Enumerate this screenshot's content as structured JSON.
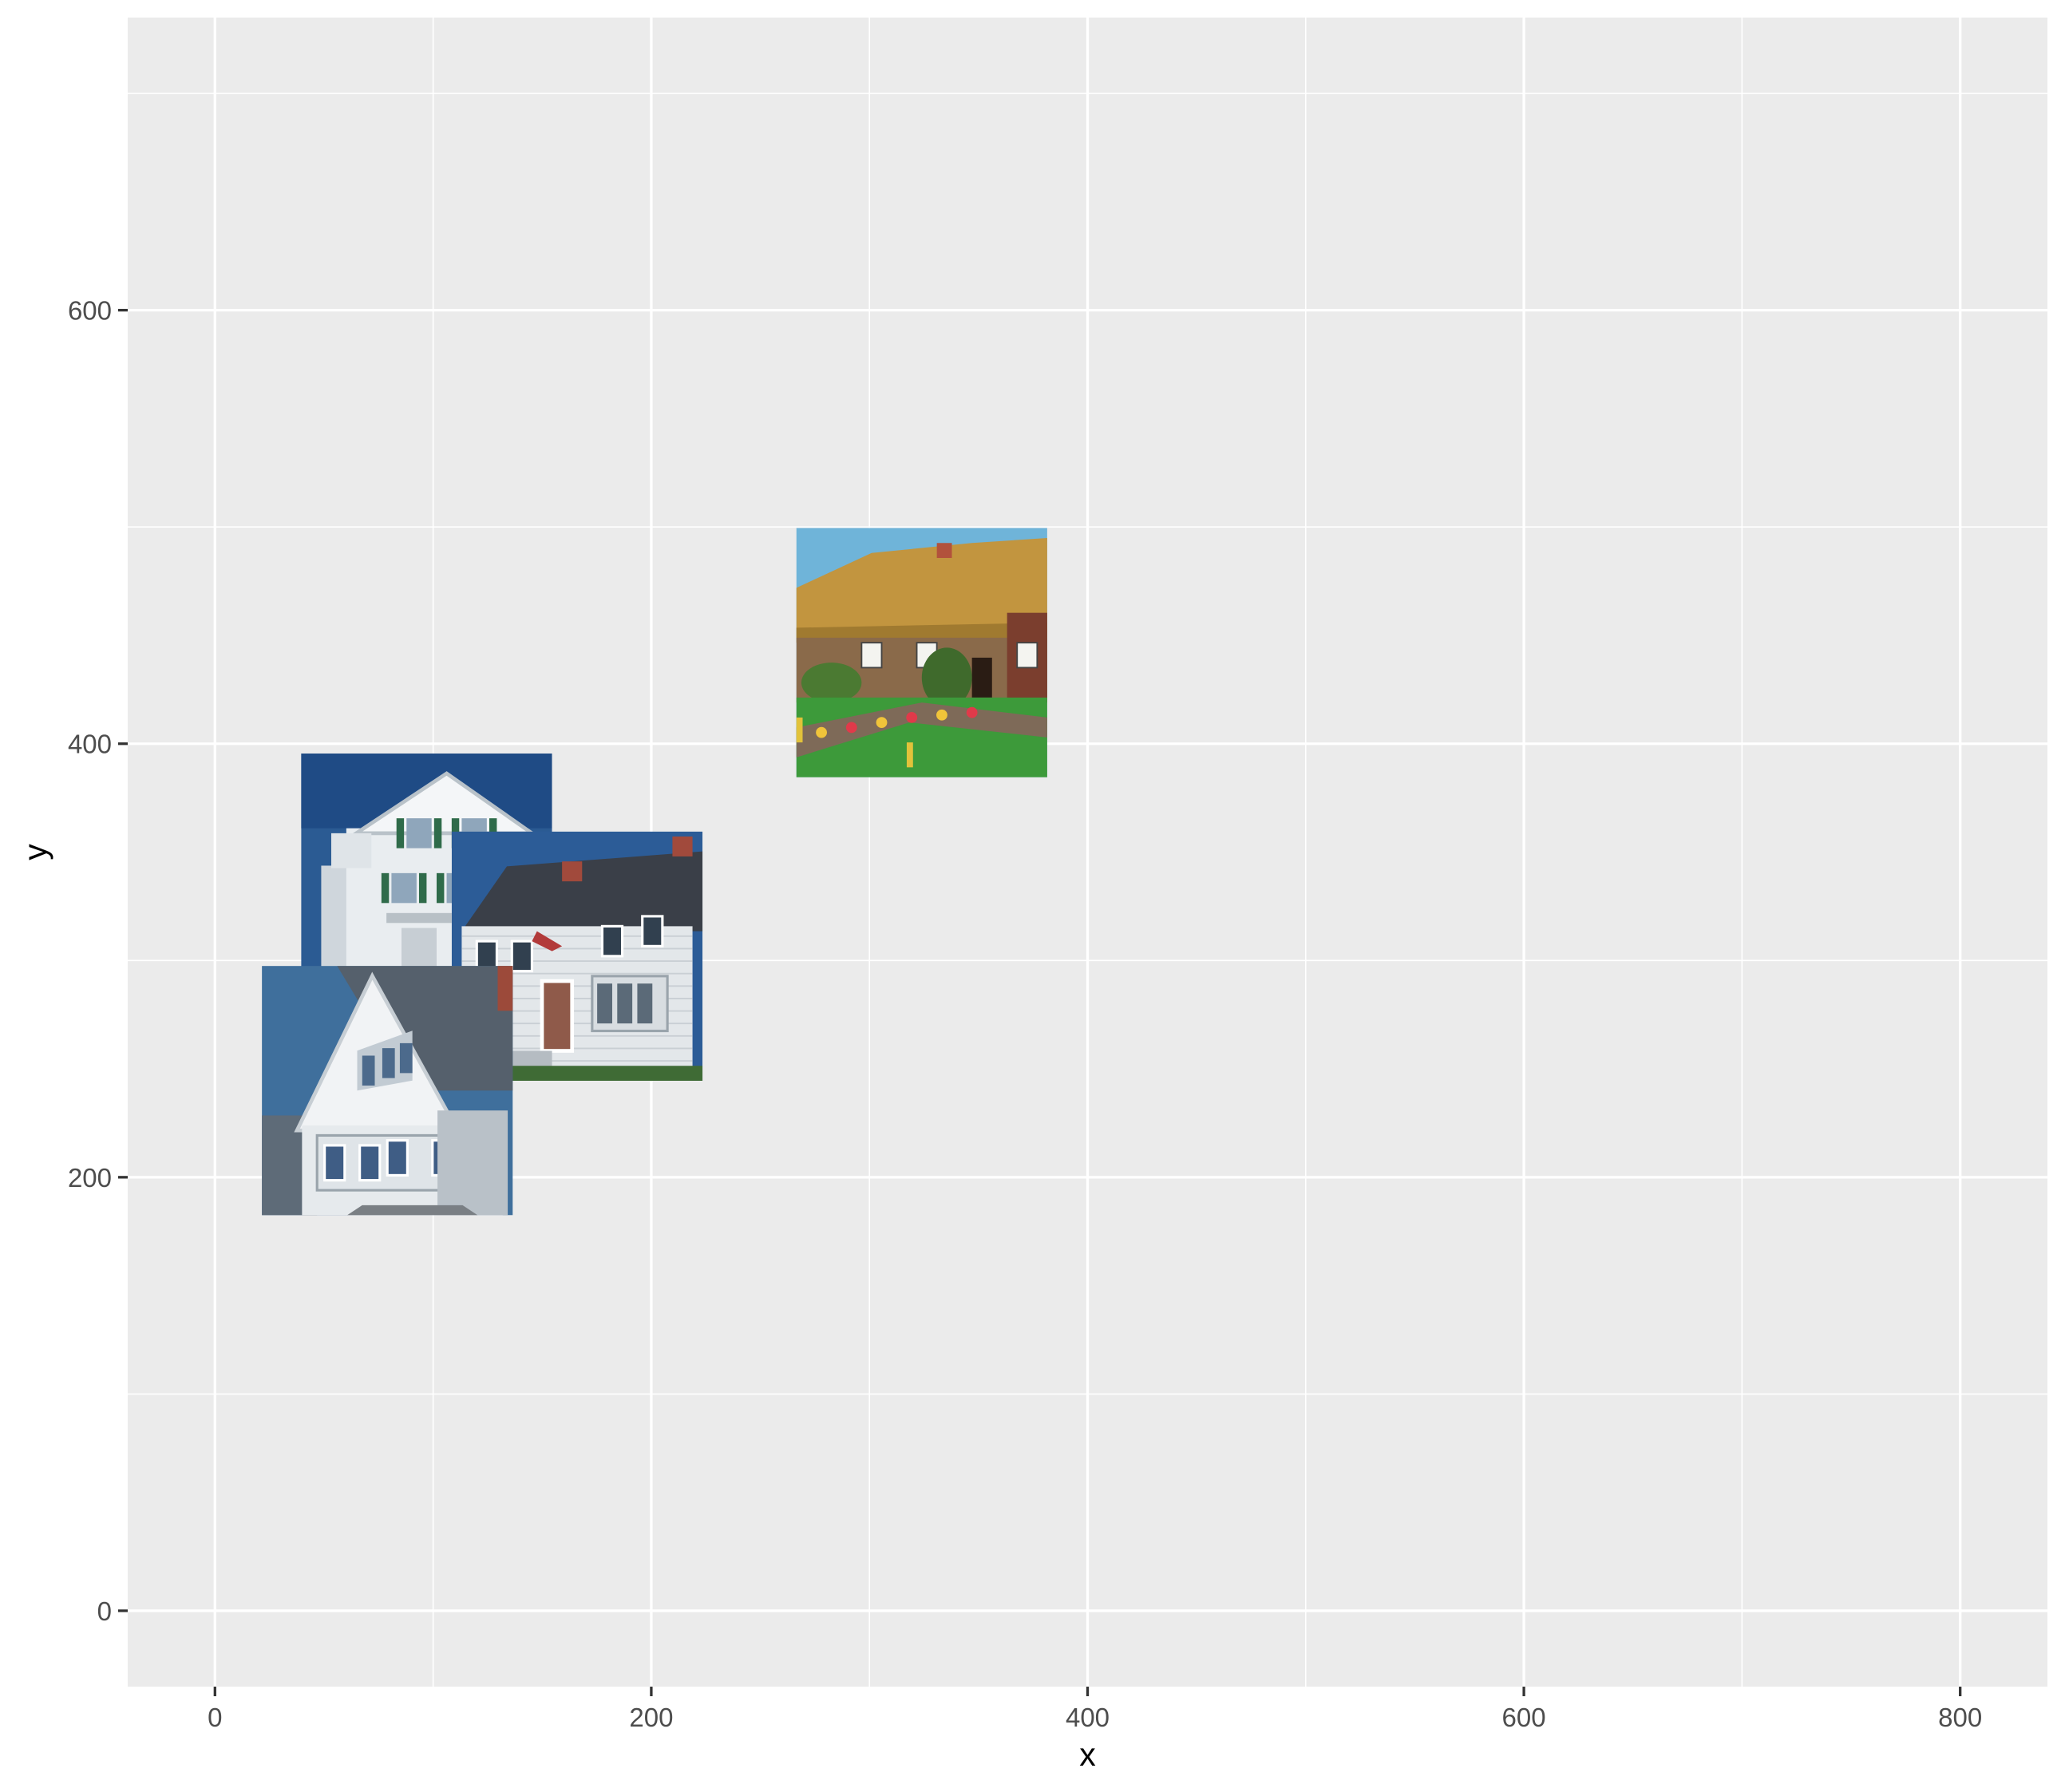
{
  "chart_data": {
    "type": "scatter",
    "marker": "image-thumbnail",
    "xlabel": "x",
    "ylabel": "y",
    "xlim": [
      -40,
      840
    ],
    "ylim": [
      -35,
      735
    ],
    "x_ticks": [
      0,
      200,
      400,
      600,
      800
    ],
    "y_ticks": [
      0,
      200,
      400,
      600
    ],
    "x_minor": [
      100,
      300,
      500,
      700
    ],
    "y_minor": [
      100,
      300,
      500,
      700
    ],
    "grid": true,
    "legend": "none",
    "colors": {
      "panel": "#ebebeb",
      "grid": "#ffffff",
      "text": "#4d4d4d"
    },
    "points": [
      {
        "x": 97,
        "y": 338,
        "width": 115,
        "height": 115,
        "image": "white-colonial-house-green-shutters"
      },
      {
        "x": 166,
        "y": 302,
        "width": 115,
        "height": 115,
        "image": "white-clapboard-house-bay-window"
      },
      {
        "x": 79,
        "y": 240,
        "width": 115,
        "height": 115,
        "image": "white-gabled-house-blue-sky"
      },
      {
        "x": 324,
        "y": 442,
        "width": 115,
        "height": 115,
        "image": "thatched-roof-cottage-garden"
      }
    ]
  }
}
